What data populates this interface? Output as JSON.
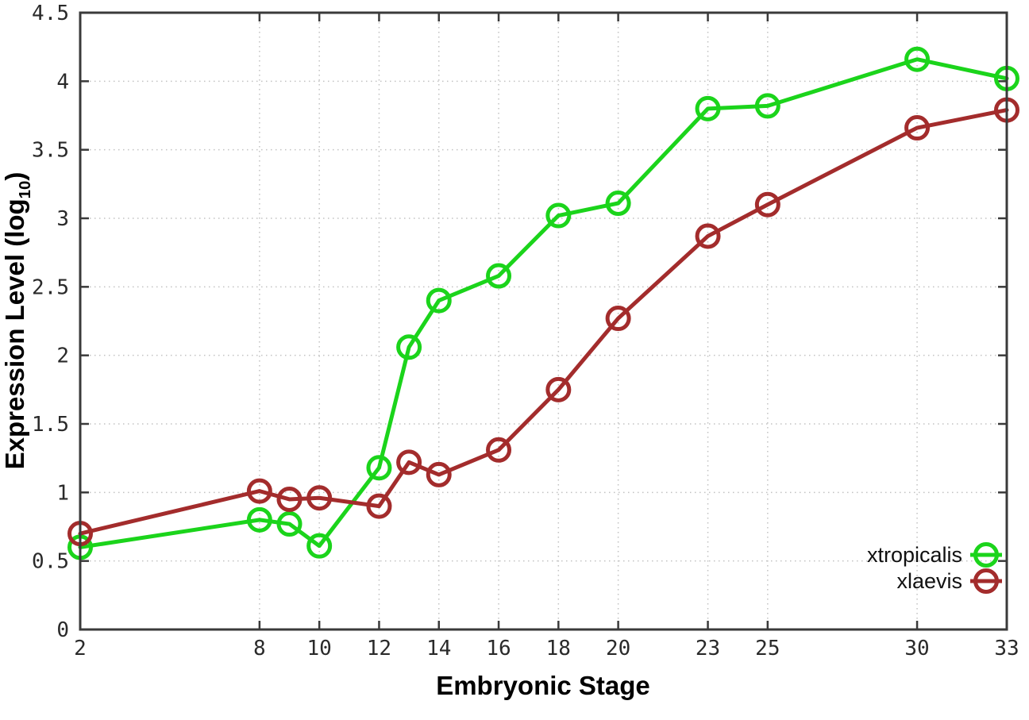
{
  "figure": {
    "background": "#ffffff",
    "border_color": "#3a3a3a",
    "grid_color": "#c2c2c2",
    "tick_color": "#3a3a3a"
  },
  "chart_data": {
    "type": "line",
    "title": "",
    "xlabel": "Embryonic Stage",
    "ylabel": "Expression Level (log10)",
    "ylabel_parts": {
      "main": "Expression Level (log",
      "sub": "10",
      "end": ")"
    },
    "xlim": [
      2,
      33
    ],
    "ylim": [
      0,
      4.5
    ],
    "x_ticks": [
      2,
      8,
      10,
      12,
      14,
      16,
      18,
      20,
      23,
      25,
      30,
      33
    ],
    "y_ticks": [
      0,
      0.5,
      1,
      1.5,
      2,
      2.5,
      3,
      3.5,
      4,
      4.5
    ],
    "grid": true,
    "legend_position": "bottom-right",
    "x": [
      2,
      8,
      9,
      10,
      12,
      13,
      14,
      16,
      18,
      20,
      23,
      25,
      30,
      33
    ],
    "series": [
      {
        "name": "xtropicalis",
        "color": "#1bd41b",
        "marker": "open-circle",
        "values": [
          0.6,
          0.8,
          0.77,
          0.61,
          1.18,
          2.06,
          2.4,
          2.58,
          3.02,
          3.11,
          3.8,
          3.82,
          4.16,
          4.02
        ]
      },
      {
        "name": "xlaevis",
        "color": "#a32c2c",
        "marker": "open-circle",
        "values": [
          0.7,
          1.01,
          0.95,
          0.96,
          0.9,
          1.22,
          1.13,
          1.31,
          1.75,
          2.27,
          2.87,
          3.1,
          3.66,
          3.79
        ]
      }
    ]
  }
}
